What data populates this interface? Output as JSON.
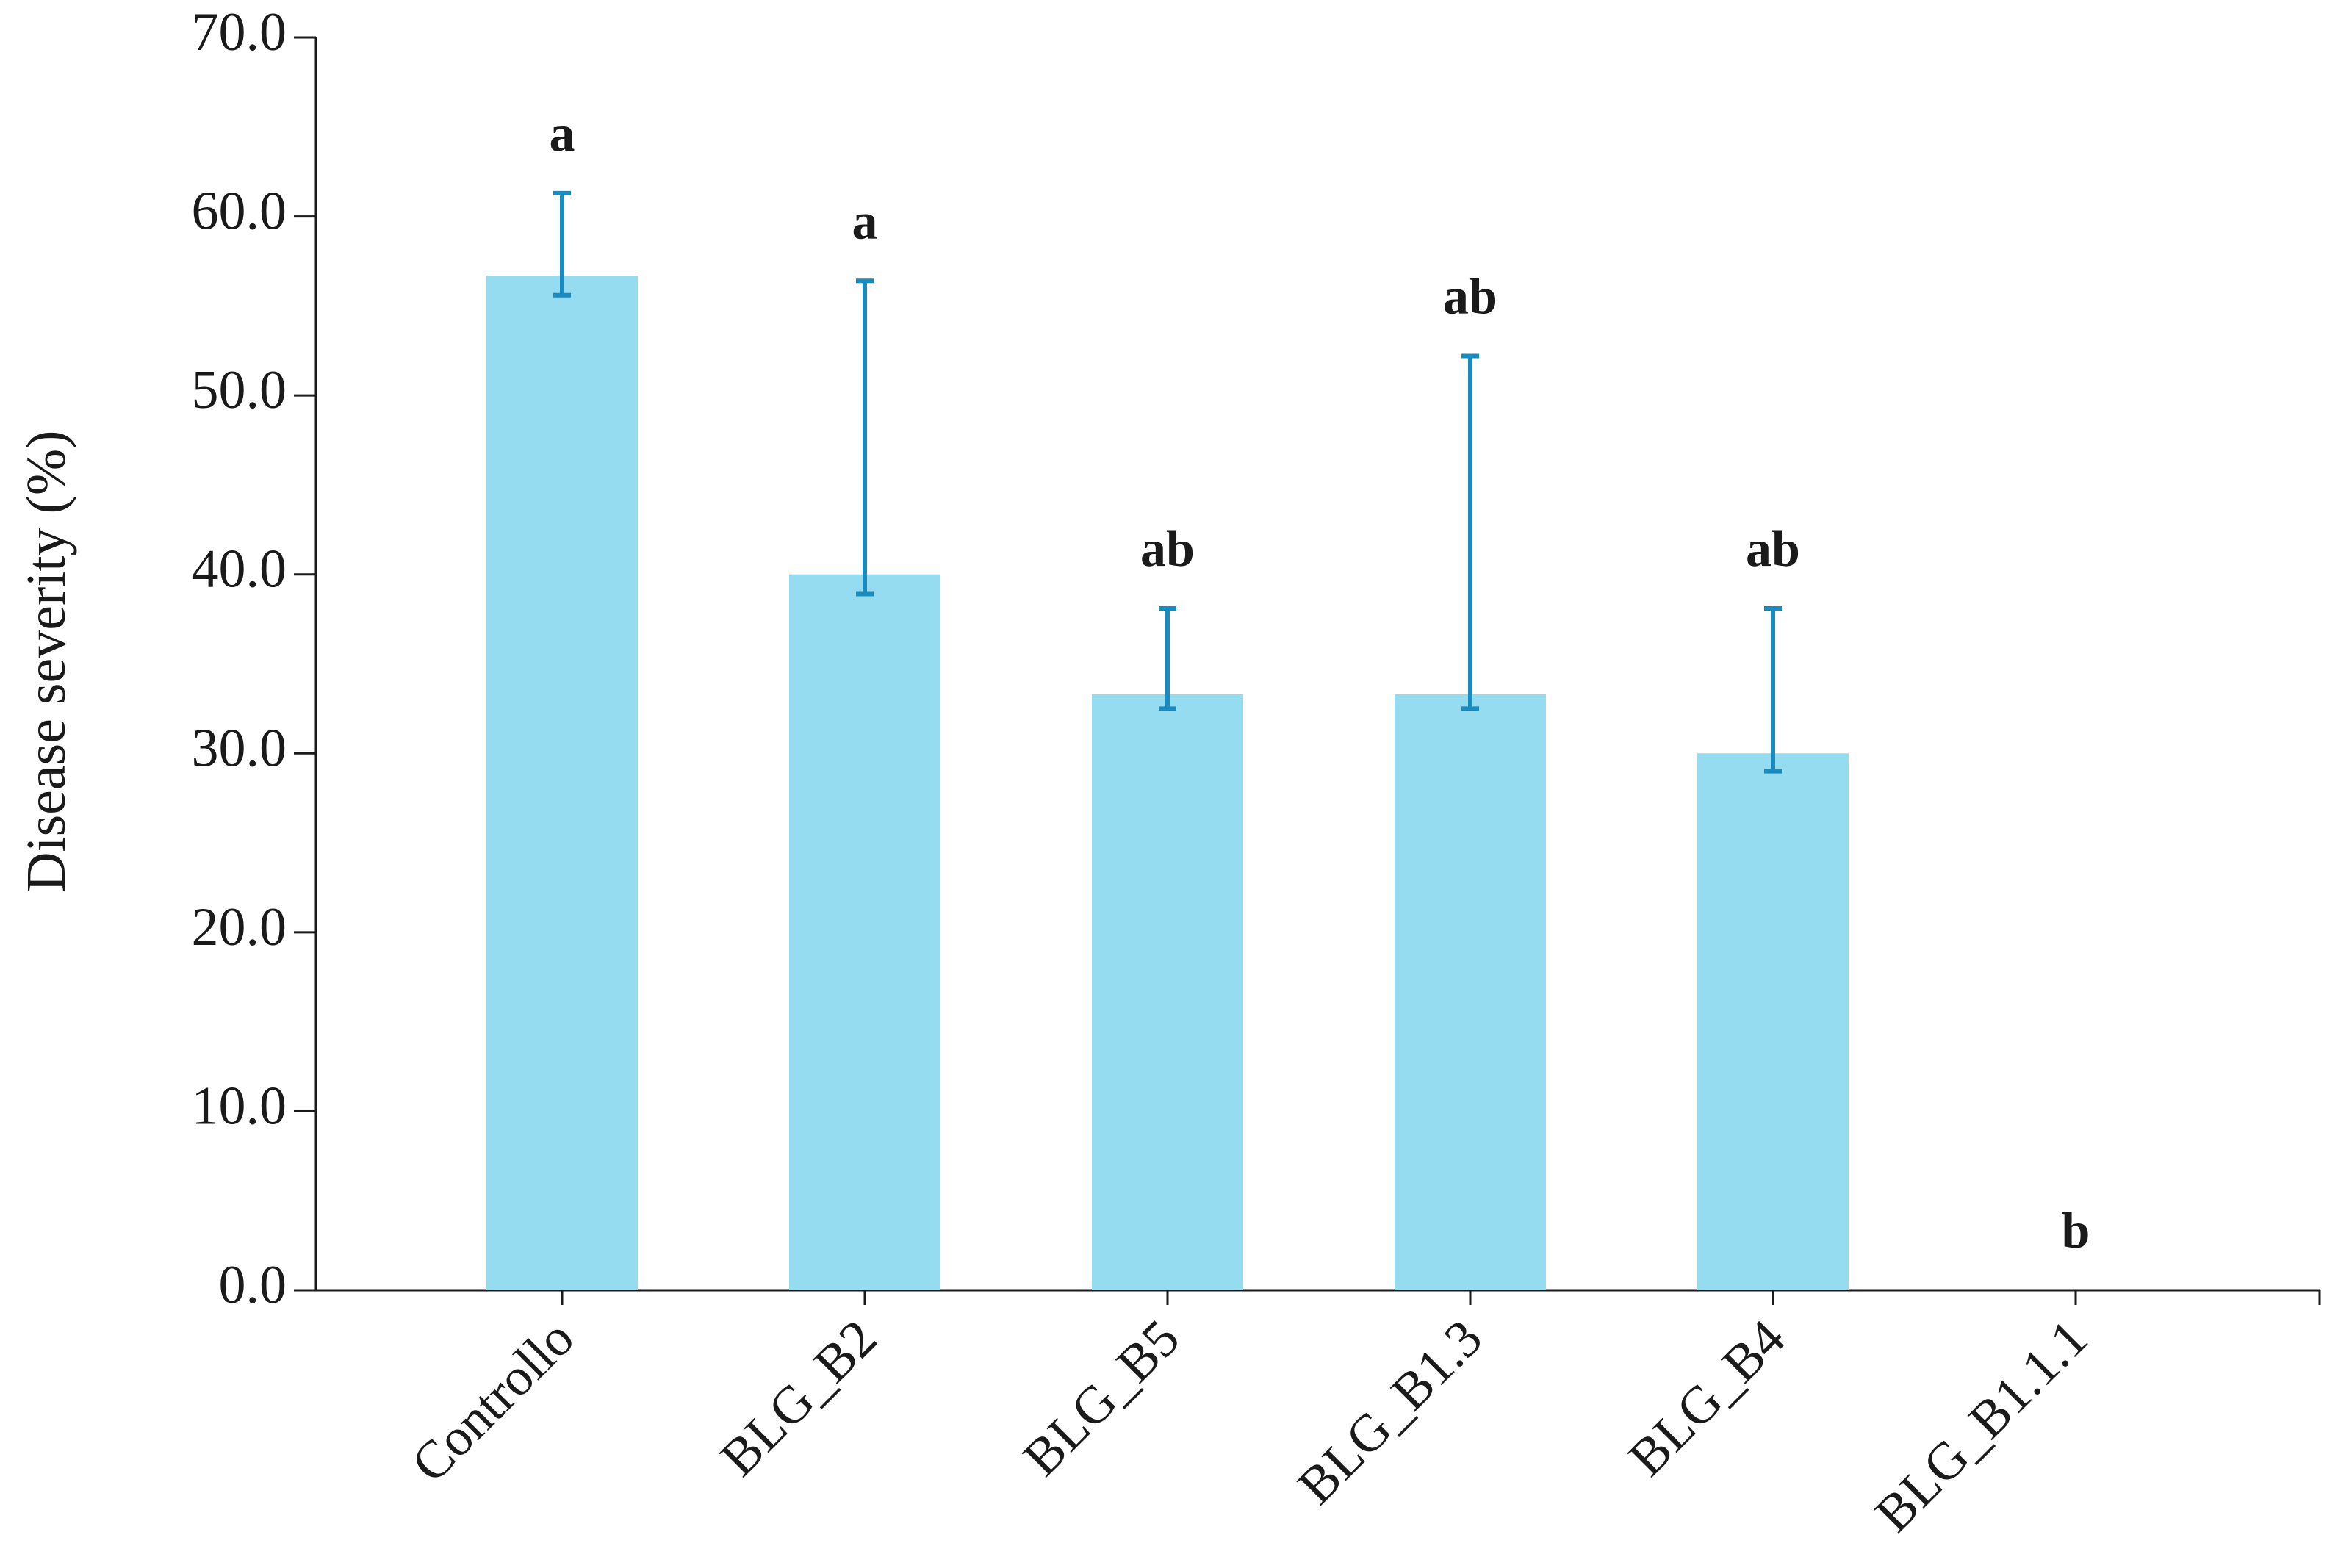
{
  "chart_data": {
    "type": "bar",
    "y_label": "Disease severity (%)",
    "categories": [
      "Controllo",
      "BLG_B2",
      "BLG_B5",
      "BLG_B1.3",
      "BLG_B4",
      "BLG_B1.1.1"
    ],
    "values": [
      56.7,
      40.0,
      33.3,
      33.3,
      30.0,
      0
    ],
    "error_plus": [
      4.6,
      16.4,
      4.8,
      18.9,
      8.1,
      null
    ],
    "error_minus": [
      1.1,
      1.1,
      0.8,
      0.8,
      1.0,
      null
    ],
    "annotations": [
      "a",
      "a",
      "ab",
      "ab",
      "ab",
      "b"
    ],
    "color": "#95dcf0",
    "error_color": "#1a8bbf",
    "ylim": [
      0,
      70
    ],
    "yticks": [
      {
        "value": 0,
        "label": "0.0"
      },
      {
        "value": 10,
        "label": "10.0"
      },
      {
        "value": 20,
        "label": "20.0"
      },
      {
        "value": 30,
        "label": "30.0"
      },
      {
        "value": 40,
        "label": "40.0"
      },
      {
        "value": 50,
        "label": "50.0"
      },
      {
        "value": 60,
        "label": "60.0"
      },
      {
        "value": 70,
        "label": "70.0"
      }
    ],
    "grid": false
  }
}
